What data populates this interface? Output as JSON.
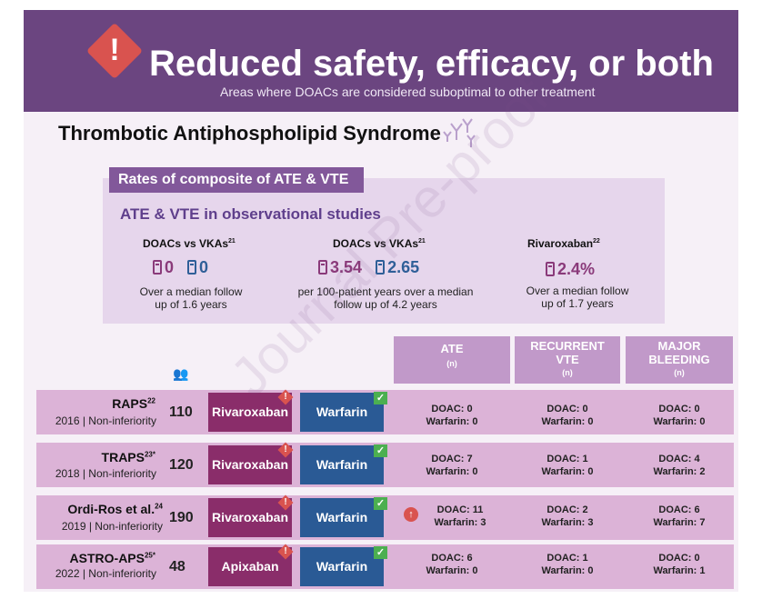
{
  "header": {
    "title": "Reduced safety, efficacy, or both",
    "subtitle": "Areas where DOACs are considered suboptimal to other treatment",
    "icon": "warning-icon",
    "color": "#6b4580"
  },
  "section": {
    "title": "Thrombotic Antiphospholipid Syndrome"
  },
  "rates": {
    "header": "Rates of composite of ATE & VTE",
    "subheader": "ATE & VTE in observational studies",
    "stats": [
      {
        "label": "DOACs vs VKAs",
        "ref": "21",
        "doac": "0",
        "vka": "0",
        "note1": "Over a median follow",
        "note2": "up of 1.6 years"
      },
      {
        "label": "DOACs vs VKAs",
        "ref": "21",
        "doac": "3.54",
        "vka": "2.65",
        "note1": "per 100-patient years over a median",
        "note2": "follow up of 4.2 years"
      },
      {
        "label": "Rivaroxaban",
        "ref": "22",
        "doac": "2.4%",
        "note1": "Over a median follow",
        "note2": "up of 1.7 years"
      }
    ]
  },
  "table": {
    "columns": [
      {
        "label1": "ATE",
        "label2": "",
        "n": "(n)"
      },
      {
        "label1": "RECURRENT",
        "label2": "VTE",
        "n": "(n)"
      },
      {
        "label1": "MAJOR",
        "label2": "BLEEDING",
        "n": "(n)"
      }
    ],
    "rows": [
      {
        "name": "RAPS",
        "ref": "22",
        "meta": "2016 | Non-inferiority",
        "n": "110",
        "doac": "Rivaroxaban",
        "comparator": "Warfarin",
        "ate": [
          "DOAC: 0",
          "Warfarin: 0"
        ],
        "vte": [
          "DOAC: 0",
          "Warfarin: 0"
        ],
        "bleed": [
          "DOAC: 0",
          "Warfarin: 0"
        ]
      },
      {
        "name": "TRAPS",
        "ref": "23*",
        "meta": "2018 | Non-inferiority",
        "n": "120",
        "doac": "Rivaroxaban",
        "comparator": "Warfarin",
        "ate": [
          "DOAC: 7",
          "Warfarin: 0"
        ],
        "vte": [
          "DOAC: 1",
          "Warfarin: 0"
        ],
        "bleed": [
          "DOAC: 4",
          "Warfarin: 2"
        ]
      },
      {
        "name": "Ordi-Ros et al.",
        "ref": "24",
        "meta": "2019 | Non-inferiority",
        "n": "190",
        "doac": "Rivaroxaban",
        "comparator": "Warfarin",
        "ate": [
          "DOAC: 11",
          "Warfarin: 3"
        ],
        "vte": [
          "DOAC: 2",
          "Warfarin: 3"
        ],
        "bleed": [
          "DOAC: 6",
          "Warfarin: 7"
        ]
      },
      {
        "name": "ASTRO-APS",
        "ref": "25*",
        "meta": "2022 | Non-inferiority",
        "n": "48",
        "doac": "Apixaban",
        "comparator": "Warfarin",
        "ate": [
          "DOAC: 6",
          "Warfarin: 0"
        ],
        "vte": [
          "DOAC: 1",
          "Warfarin: 0"
        ],
        "bleed": [
          "DOAC: 0",
          "Warfarin: 1"
        ]
      }
    ]
  },
  "watermark": "Journal Pre-proof",
  "colors": {
    "doac": "#8a2d6a",
    "warfarin": "#2a5a95",
    "row": "#dcb3d7",
    "column_header": "#c199c9"
  }
}
